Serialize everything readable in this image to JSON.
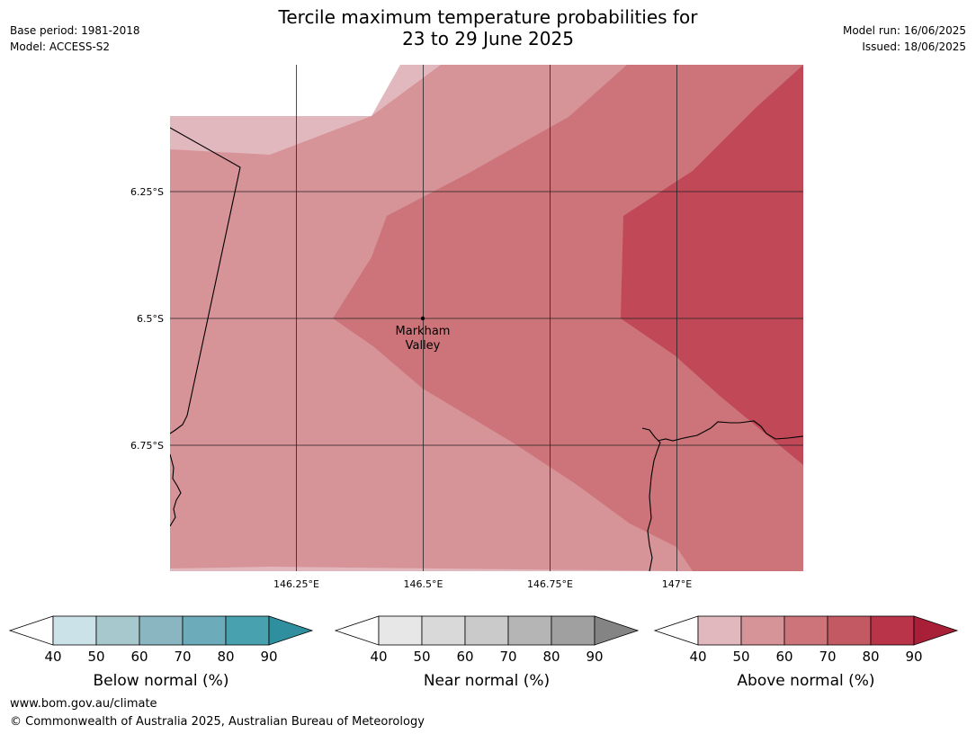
{
  "title": {
    "line1": "Tercile maximum temperature probabilities for",
    "line2": "23 to 29 June 2025"
  },
  "meta": {
    "base_period": "Base period: 1981-2018",
    "model": "Model: ACCESS-S2",
    "model_run": "Model run: 16/06/2025",
    "issued": "Issued: 18/06/2025"
  },
  "map": {
    "lat_ticks": [
      "6.25°S",
      "6.5°S",
      "6.75°S"
    ],
    "lon_ticks": [
      "146.25°E",
      "146.5°E",
      "146.75°E",
      "147°E"
    ],
    "location": {
      "line1": "Markham",
      "line2": "Valley"
    },
    "forecast_category": "Above normal",
    "probability_bands_pct": [
      "40-50",
      "50-60",
      "60-70",
      "70-80"
    ]
  },
  "colorbars": [
    {
      "label": "Below normal (%)",
      "ticks": [
        "40",
        "50",
        "60",
        "70",
        "80",
        "90"
      ],
      "colors": [
        "#cbe3e8",
        "#a7c8cc",
        "#8ab6c1",
        "#6cacba",
        "#47a1ae",
        "#2f8f9e"
      ]
    },
    {
      "label": "Near normal (%)",
      "ticks": [
        "40",
        "50",
        "60",
        "70",
        "80",
        "90"
      ],
      "colors": [
        "#e7e7e7",
        "#d9d9d9",
        "#cacaca",
        "#b5b5b5",
        "#a0a0a0",
        "#848484"
      ]
    },
    {
      "label": "Above normal (%)",
      "ticks": [
        "40",
        "50",
        "60",
        "70",
        "80",
        "90"
      ],
      "colors": [
        "#e1b8bd",
        "#d69398",
        "#cc7479",
        "#c35a63",
        "#b93349",
        "#a91f38"
      ]
    }
  ],
  "footer": {
    "url": "www.bom.gov.au/climate",
    "copyright": "© Commonwealth of Australia 2025, Australian Bureau of Meteorology"
  }
}
